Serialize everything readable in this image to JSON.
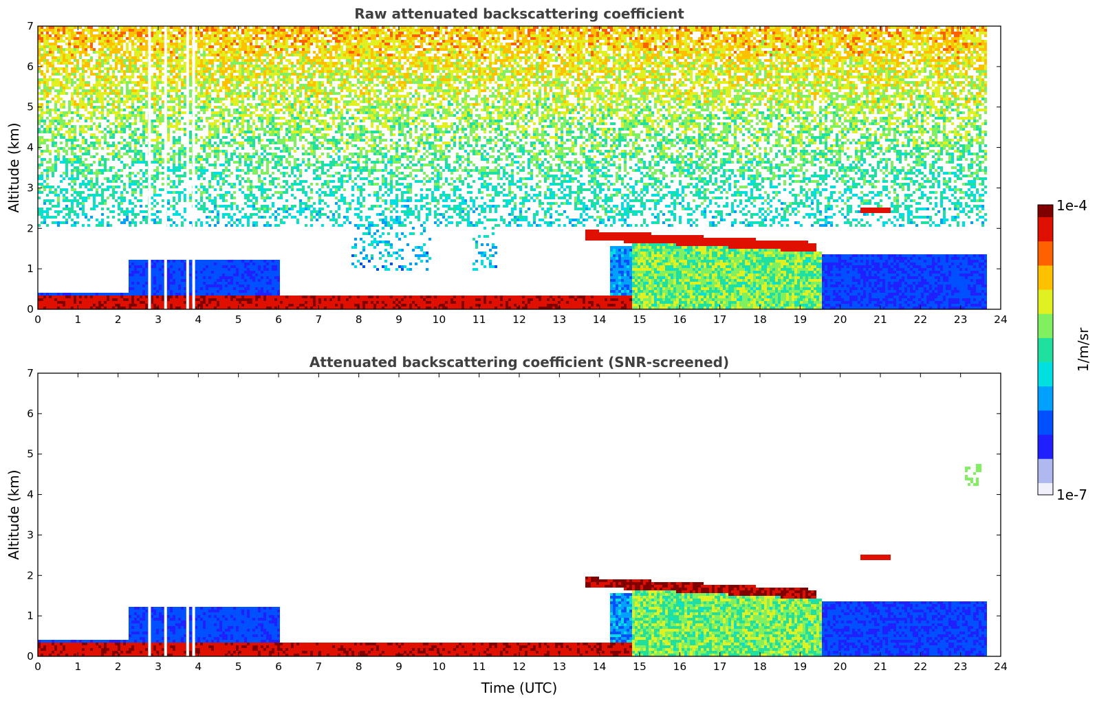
{
  "chart_data": [
    {
      "type": "heatmap",
      "title": "Raw attenuated backscattering coefficient",
      "xlabel": "",
      "ylabel": "Altitude (km)",
      "xlim": [
        0,
        24
      ],
      "ylim": [
        0,
        7
      ],
      "xticks": [
        "0",
        "1",
        "2",
        "3",
        "4",
        "5",
        "6",
        "7",
        "8",
        "9",
        "10",
        "11",
        "12",
        "13",
        "14",
        "15",
        "16",
        "17",
        "18",
        "19",
        "20",
        "21",
        "22",
        "23",
        "24"
      ],
      "yticks": [
        "0",
        "1",
        "2",
        "3",
        "4",
        "5",
        "6",
        "7"
      ],
      "data_extent_x": [
        0,
        23.6
      ],
      "features": [
        {
          "name": "surface aerosol layer",
          "x": [
            0,
            14.8
          ],
          "y": [
            0,
            0.3
          ],
          "value": "≈1e-4"
        },
        {
          "name": "boundary layer aerosol",
          "x": [
            0,
            6
          ],
          "y": [
            0,
            1.2
          ],
          "value": "≈1e-6"
        },
        {
          "name": "cloud base layer",
          "x": [
            13.6,
            19.4
          ],
          "y": [
            1.5,
            1.85
          ],
          "value": "≈1e-4"
        },
        {
          "name": "below-cloud precipitation",
          "x": [
            14.8,
            19.5
          ],
          "y": [
            0,
            1.6
          ],
          "value": "≈1e-5"
        },
        {
          "name": "evening boundary layer",
          "x": [
            19.4,
            23.6
          ],
          "y": [
            0,
            1.3
          ],
          "value": "≈1e-6"
        },
        {
          "name": "upper-level noise",
          "x": [
            0,
            23.6
          ],
          "y": [
            2,
            7
          ],
          "value": "1e-6 to 1e-5"
        },
        {
          "name": "elevated layer",
          "x": [
            20.6,
            21.0
          ],
          "y": [
            2.35,
            2.45
          ],
          "value": "≈1e-4"
        }
      ]
    },
    {
      "type": "heatmap",
      "title": "Attenuated backscattering coefficient (SNR-screened)",
      "xlabel": "Time (UTC)",
      "ylabel": "Altitude (km)",
      "xlim": [
        0,
        24
      ],
      "ylim": [
        0,
        7
      ],
      "xticks": [
        "0",
        "1",
        "2",
        "3",
        "4",
        "5",
        "6",
        "7",
        "8",
        "9",
        "10",
        "11",
        "12",
        "13",
        "14",
        "15",
        "16",
        "17",
        "18",
        "19",
        "20",
        "21",
        "22",
        "23",
        "24"
      ],
      "yticks": [
        "0",
        "1",
        "2",
        "3",
        "4",
        "5",
        "6",
        "7"
      ],
      "data_extent_x": [
        0,
        23.6
      ],
      "features": [
        {
          "name": "surface aerosol layer",
          "x": [
            0,
            14.8
          ],
          "y": [
            0,
            0.3
          ],
          "value": "≈1e-4"
        },
        {
          "name": "boundary layer aerosol",
          "x": [
            2,
            6
          ],
          "y": [
            0,
            1.3
          ],
          "value": "≈1e-6"
        },
        {
          "name": "cloud base layer",
          "x": [
            13.6,
            19.4
          ],
          "y": [
            1.5,
            1.85
          ],
          "value": ">1e-4"
        },
        {
          "name": "below-cloud precipitation",
          "x": [
            14.8,
            19.5
          ],
          "y": [
            0,
            1.6
          ],
          "value": "≈1e-5"
        },
        {
          "name": "evening boundary layer",
          "x": [
            19.4,
            23.6
          ],
          "y": [
            0,
            1.3
          ],
          "value": "≈1e-6"
        },
        {
          "name": "elevated layer",
          "x": [
            20.4,
            21.3
          ],
          "y": [
            2.3,
            2.45
          ],
          "value": "≈1e-4"
        },
        {
          "name": "isolated echo",
          "x": [
            23.1,
            23.5
          ],
          "y": [
            4.2,
            4.7
          ],
          "value": "≈1e-5"
        }
      ]
    }
  ],
  "colorbar": {
    "top_label": "1e-4",
    "bottom_label": "1e-7",
    "unit_label": "1/m/sr",
    "scale": "log",
    "colormap": [
      "#f0f0fa",
      "#b0b8f0",
      "#2020ff",
      "#0050ff",
      "#00a0ff",
      "#00e0e0",
      "#20e0a0",
      "#80f060",
      "#e0f020",
      "#ffc000",
      "#ff6000",
      "#e01000",
      "#800000"
    ]
  }
}
